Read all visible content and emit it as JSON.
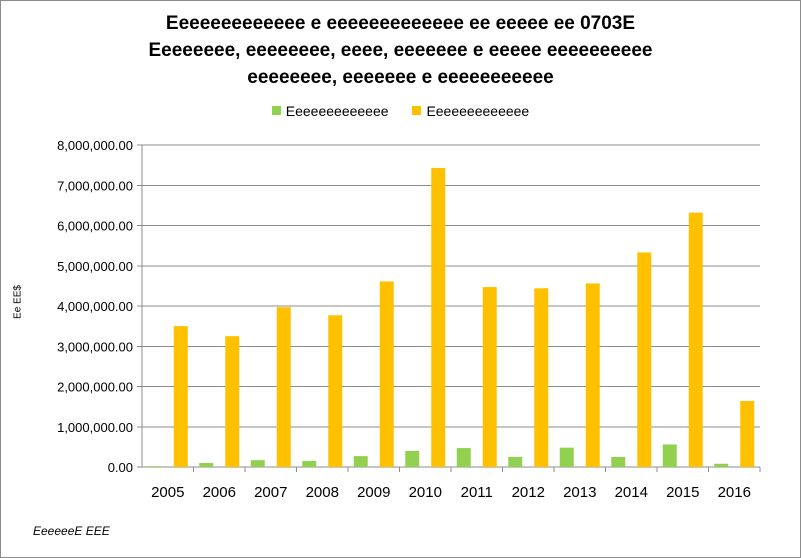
{
  "chart_data": {
    "type": "bar",
    "title_lines": [
      "Eeeeeeeeeeeee e eeeeeeeeeeeee ee eeeee ee 0703E",
      "Eeeeeeee, eeeeeeee, eeee, eeeeeee e eeeee eeeeeeeeee",
      "eeeeeeee, eeeeeee e eeeeeeeeeee"
    ],
    "ylabel": "Ee  EE$",
    "xlabel": "",
    "source_note": "EeeeeeE EEE",
    "categories": [
      "2005",
      "2006",
      "2007",
      "2008",
      "2009",
      "2010",
      "2011",
      "2012",
      "2013",
      "2014",
      "2015",
      "2016"
    ],
    "series": [
      {
        "name": "Eeeeeeeeeeeee",
        "color": "#92d050",
        "values": [
          20000,
          100000,
          170000,
          150000,
          270000,
          400000,
          470000,
          250000,
          480000,
          250000,
          560000,
          80000
        ]
      },
      {
        "name": "Eeeeeeeeeeeee",
        "color": "#ffc000",
        "values": [
          3500000,
          3250000,
          3970000,
          3770000,
          4610000,
          7430000,
          4470000,
          4440000,
          4560000,
          5330000,
          6320000,
          1640000
        ]
      }
    ],
    "ylim": [
      0,
      8000000
    ],
    "ytick_step": 1000000,
    "ytick_labels": [
      "0.00",
      "1,000,000.00",
      "2,000,000.00",
      "3,000,000.00",
      "4,000,000.00",
      "5,000,000.00",
      "6,000,000.00",
      "7,000,000.00",
      "8,000,000.00"
    ],
    "grid": true,
    "legend_position": "top"
  }
}
